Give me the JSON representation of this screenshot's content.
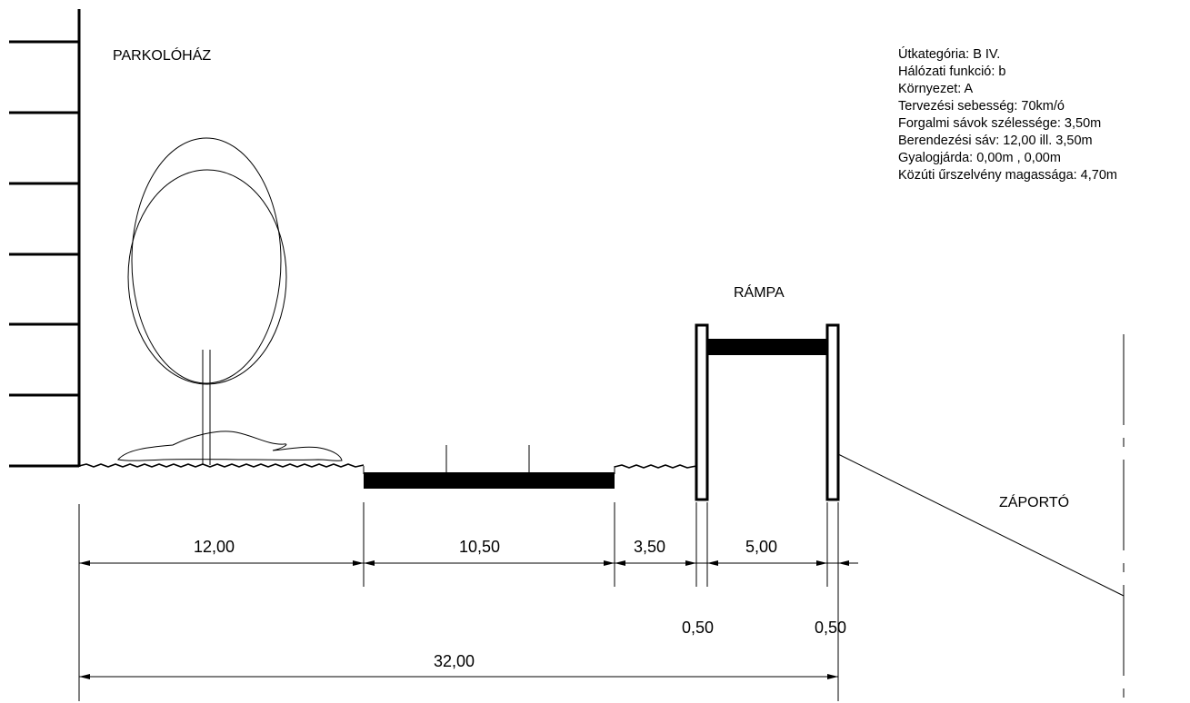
{
  "labels": {
    "parking_garage": "PARKOLÓHÁZ",
    "ramp": "RÁMPA",
    "drainage_ditch": "ZÁPORTÓ"
  },
  "specs": [
    "Útkategória: B IV.",
    "Hálózati funkció: b",
    "Környezet: A",
    "Tervezési sebesség: 70km/ó",
    "Forgalmi sávok szélessége: 3,50m",
    "Berendezési sáv: 12,00 ill. 3,50m",
    "Gyalogjárda: 0,00m , 0,00m",
    "Közúti űrszelvény magassága: 4,70m"
  ],
  "dimensions": {
    "planting_strip": "12,00",
    "carriageway": "10,50",
    "shoulder": "3,50",
    "ramp_deck": "5,00",
    "ramp_wall_left": "0,50",
    "ramp_wall_right": "0,50",
    "total_width": "32,00"
  }
}
